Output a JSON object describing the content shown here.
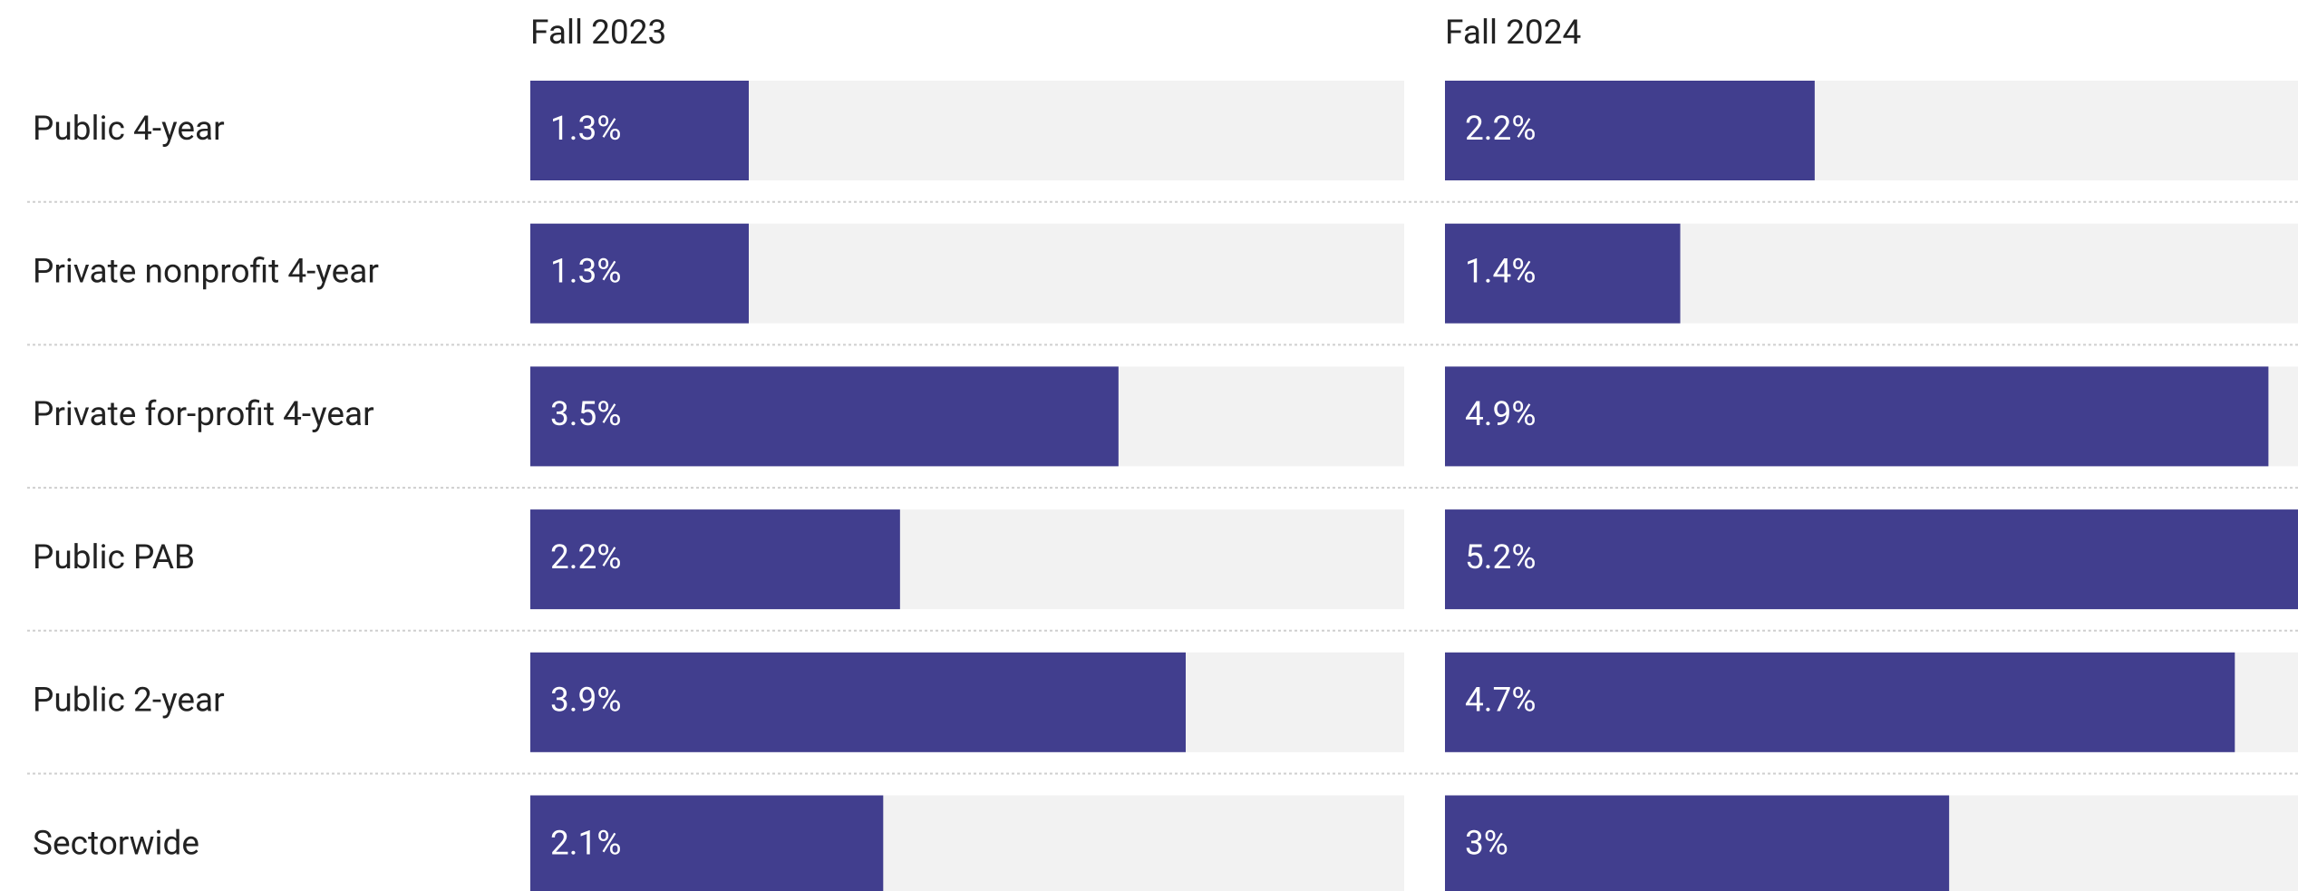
{
  "chart_data": {
    "type": "bar",
    "orientation": "horizontal",
    "categories": [
      "Public 4-year",
      "Private nonprofit 4-year",
      "Private for-profit 4-year",
      "Public PAB",
      "Public 2-year",
      "Sectorwide"
    ],
    "series": [
      {
        "name": "Fall 2023",
        "color": "#413e8e",
        "values": [
          1.3,
          1.3,
          3.5,
          2.2,
          3.9,
          2.1
        ],
        "value_labels": [
          "1.3%",
          "1.3%",
          "3.5%",
          "2.2%",
          "3.9%",
          "2.1%"
        ]
      },
      {
        "name": "Fall 2024",
        "color": "#413e8e",
        "values": [
          2.2,
          1.4,
          4.9,
          5.2,
          4.7,
          3
        ],
        "value_labels": [
          "2.2%",
          "1.4%",
          "4.9%",
          "5.2%",
          "4.7%",
          "3%"
        ]
      }
    ],
    "xlim": [
      0,
      5.2
    ],
    "track_color": "#f2f2f2"
  }
}
